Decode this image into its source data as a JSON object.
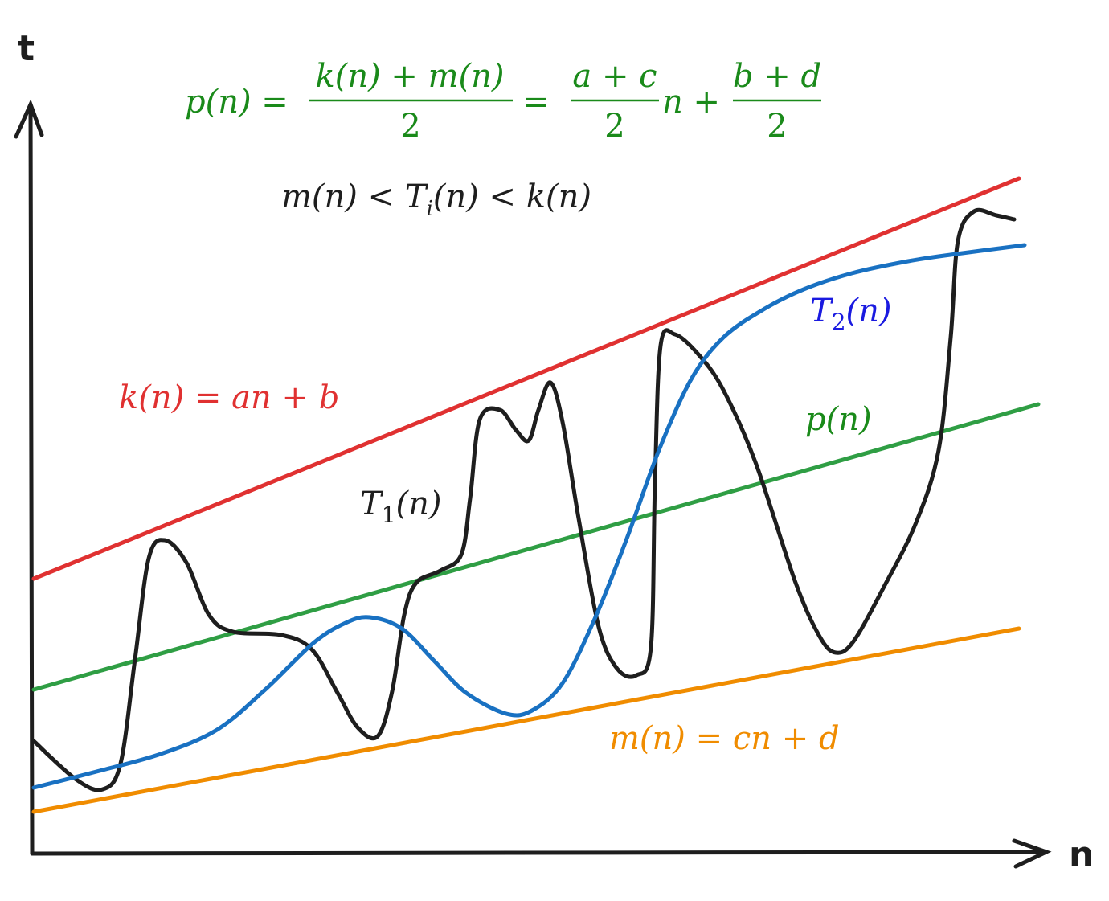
{
  "axes": {
    "y_label": "t",
    "x_label": "n"
  },
  "formula": {
    "lhs": "p(n) =",
    "frac1_num": "k(n) + m(n)",
    "frac1_den": "2",
    "eq": "=",
    "frac2_num": "a + c",
    "frac2_den": "2",
    "mid": "n +",
    "frac3_num": "b + d",
    "frac3_den": "2"
  },
  "inequality": {
    "left": "m(n) < T",
    "sub": "i",
    "right": "(n) < k(n)"
  },
  "labels": {
    "k": "k(n) = an + b",
    "m": "m(n) = cn + d",
    "p": "p(n)",
    "t1": {
      "main": "T",
      "sub": "1",
      "rest": "(n)"
    },
    "t2": {
      "main": "T",
      "sub": "2",
      "rest": "(n)"
    }
  }
}
